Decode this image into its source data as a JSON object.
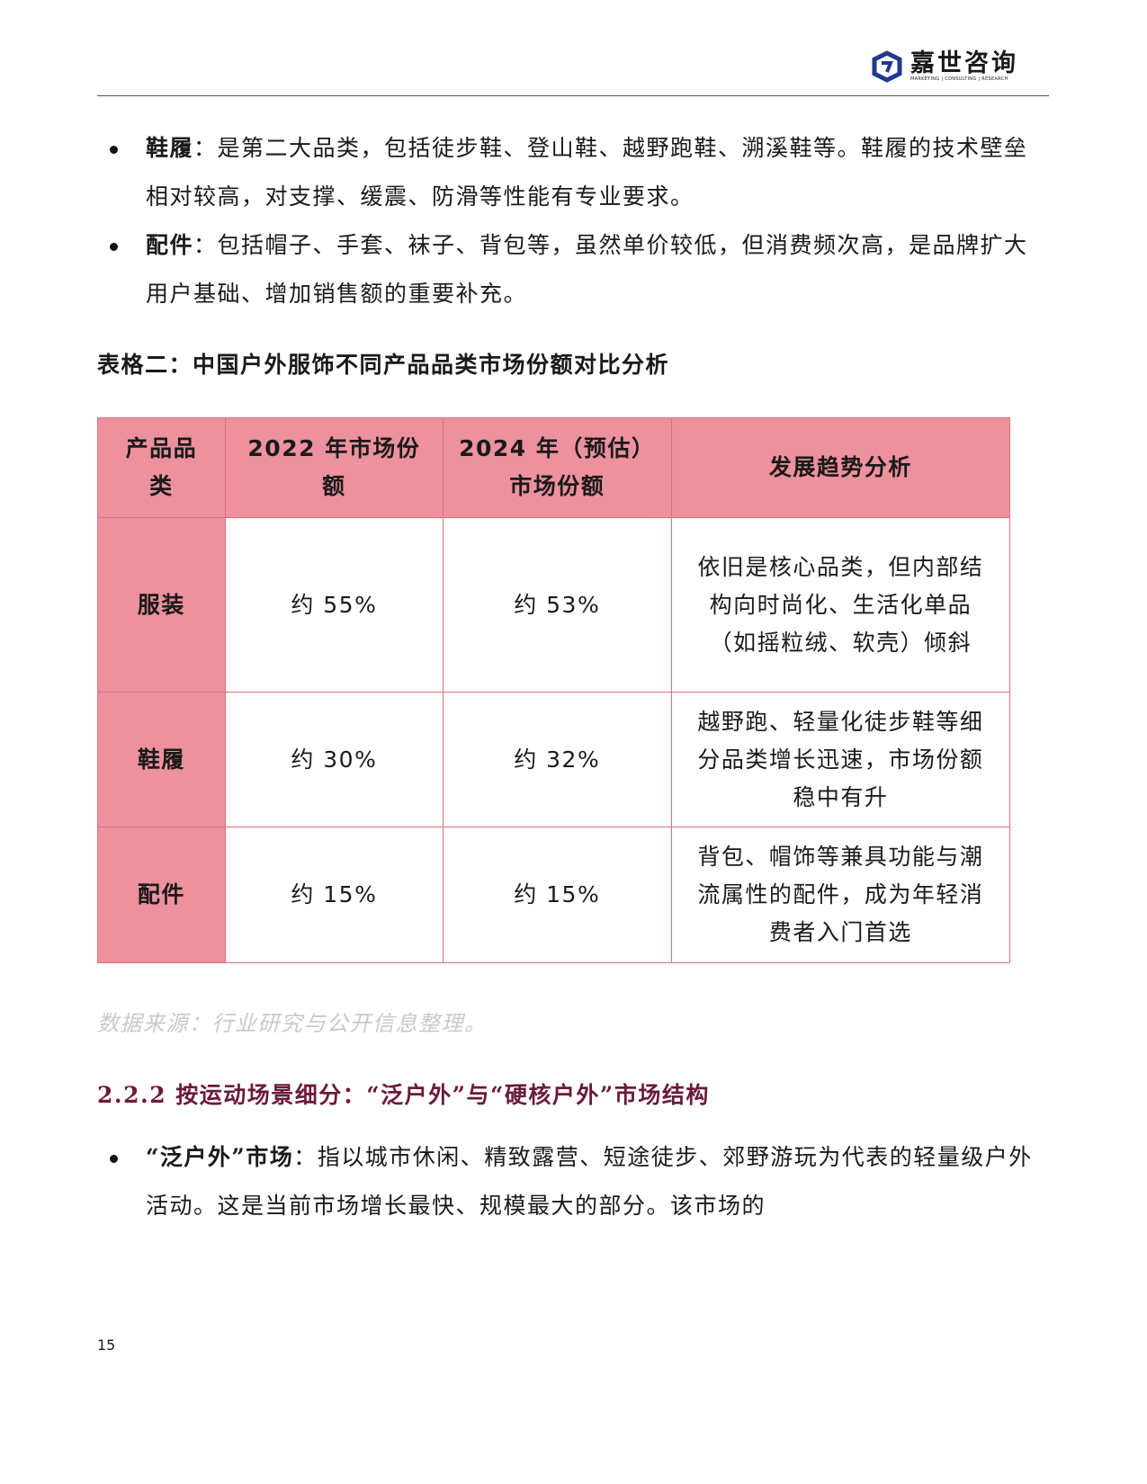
{
  "header": {
    "logo_name": "嘉世咨询",
    "logo_tagline": "MARKETING  |  CONSULTING  |  RESEARCH",
    "brand_color": "#1f3a8f"
  },
  "bullets_top": [
    {
      "term": "鞋履",
      "text": "：是第二大品类，包括徒步鞋、登山鞋、越野跑鞋、溯溪鞋等。鞋履的技术壁垒相对较高，对支撑、缓震、防滑等性能有专业要求。"
    },
    {
      "term": "配件",
      "text": "：包括帽子、手套、袜子、背包等，虽然单价较低，但消费频次高，是品牌扩大用户基础、增加销售额的重要补充。"
    }
  ],
  "table": {
    "caption": "表格二：中国户外服饰不同产品品类市场份额对比分析",
    "headers": [
      "产品品类",
      "2022 年市场份额",
      "2024 年（预估）市场份额",
      "发展趋势分析"
    ],
    "rows": [
      {
        "category": "服装",
        "share_2022": "约 55%",
        "share_2024": "约 53%",
        "trend": "依旧是核心品类，但内部结构向时尚化、生活化单品（如摇粒绒、软壳）倾斜"
      },
      {
        "category": "鞋履",
        "share_2022": "约 30%",
        "share_2024": "约 32%",
        "trend": "越野跑、轻量化徒步鞋等细分品类增长迅速，市场份额稳中有升"
      },
      {
        "category": "配件",
        "share_2022": "约 15%",
        "share_2024": "约 15%",
        "trend": "背包、帽饰等兼具功能与潮流属性的配件，成为年轻消费者入门首选"
      }
    ],
    "header_color": "#ec919d",
    "source": "数据来源：行业研究与公开信息整理。"
  },
  "section": {
    "heading": "2.2.2 按运动场景细分：“泛户外”与“硬核户外”市场结构",
    "heading_color": "#6b1a3a"
  },
  "bullets_bottom": [
    {
      "term": "“泛户外”市场",
      "text": "：指以城市休闲、精致露营、短途徒步、郊野游玩为代表的轻量级户外活动。这是当前市场增长最快、规模最大的部分。该市场的"
    }
  ],
  "footer": {
    "page_number": "15"
  }
}
